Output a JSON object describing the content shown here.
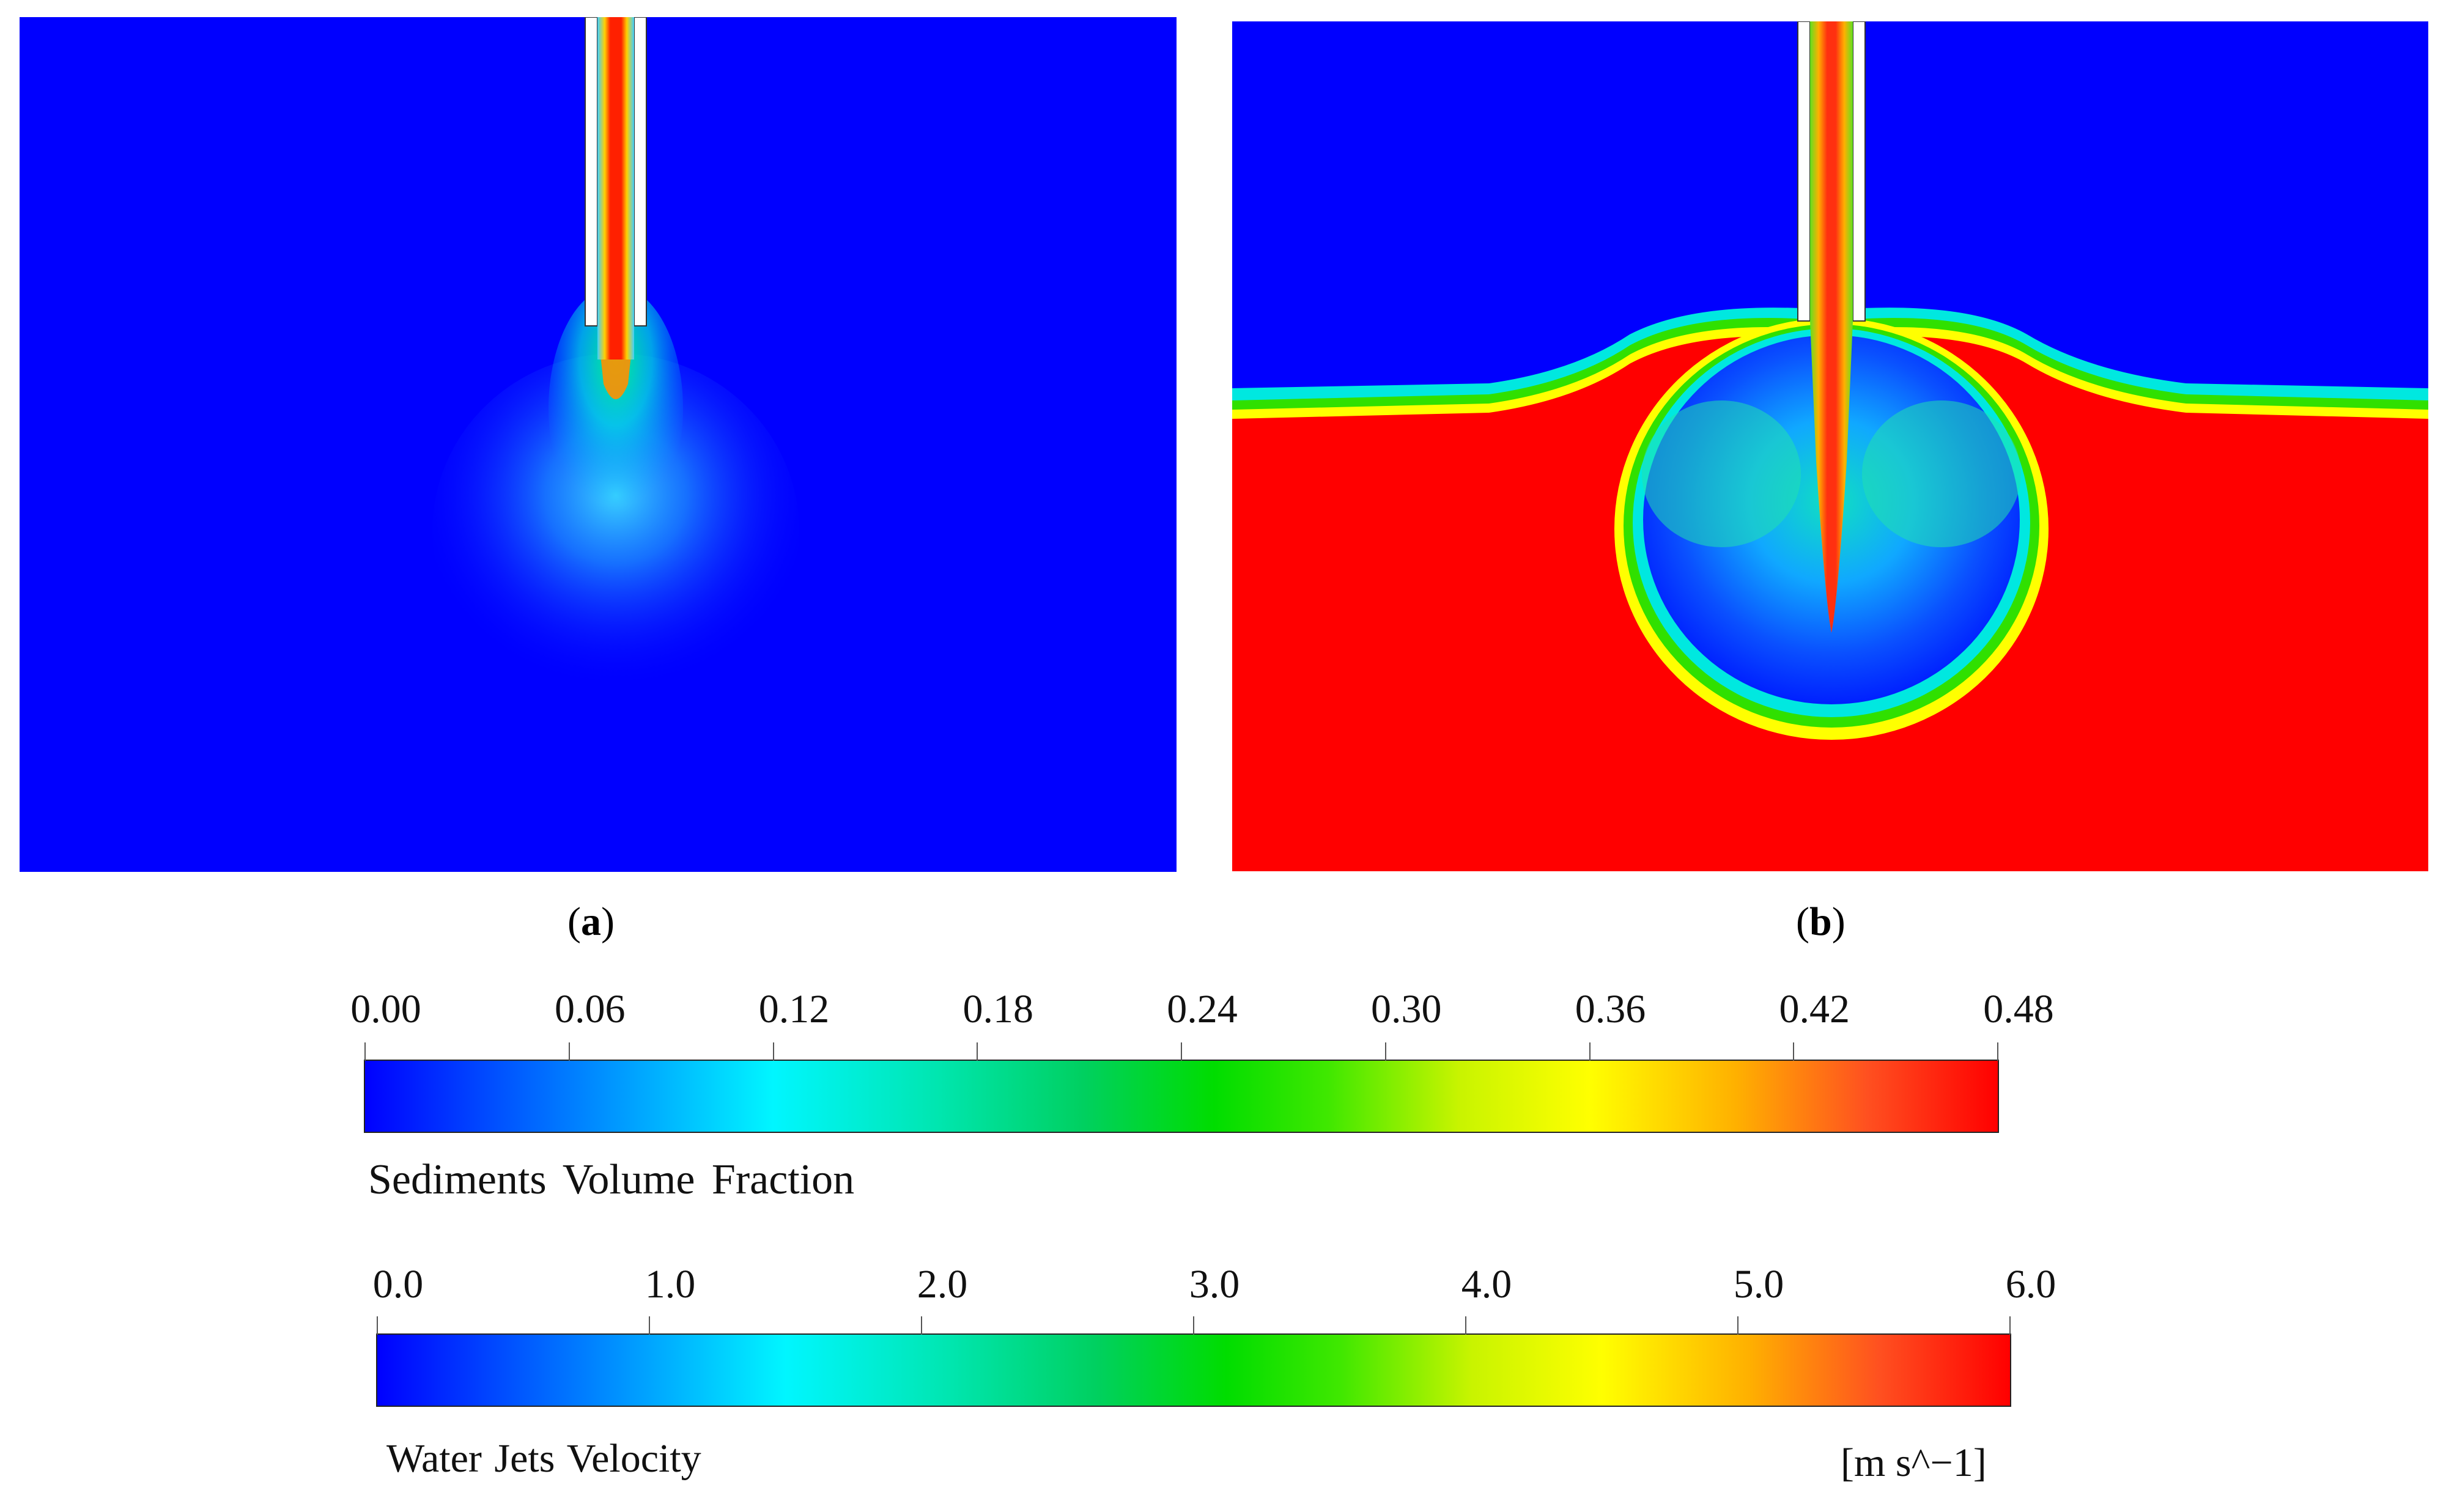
{
  "panels": [
    {
      "id": "a",
      "caption_label": "a"
    },
    {
      "id": "b",
      "caption_label": "b"
    }
  ],
  "colorbars": {
    "sediments": {
      "title": "Sediments  Volume Fraction",
      "ticks": [
        "0.00",
        "0.06",
        "0.12",
        "0.18",
        "0.24",
        "0.30",
        "0.36",
        "0.42",
        "0.48"
      ],
      "min": 0.0,
      "max": 0.48,
      "unit": ""
    },
    "velocity": {
      "title": "Water Jets Velocity",
      "ticks": [
        "0.0",
        "1.0",
        "2.0",
        "3.0",
        "4.0",
        "5.0",
        "6.0"
      ],
      "min": 0.0,
      "max": 6.0,
      "unit": "[m s^−1]"
    }
  },
  "colors": {
    "background_field": "#0000ff",
    "sediment_bed": "#ff0000",
    "jet_core": "#ff3010",
    "nozzle_wall": "#ffffff"
  }
}
